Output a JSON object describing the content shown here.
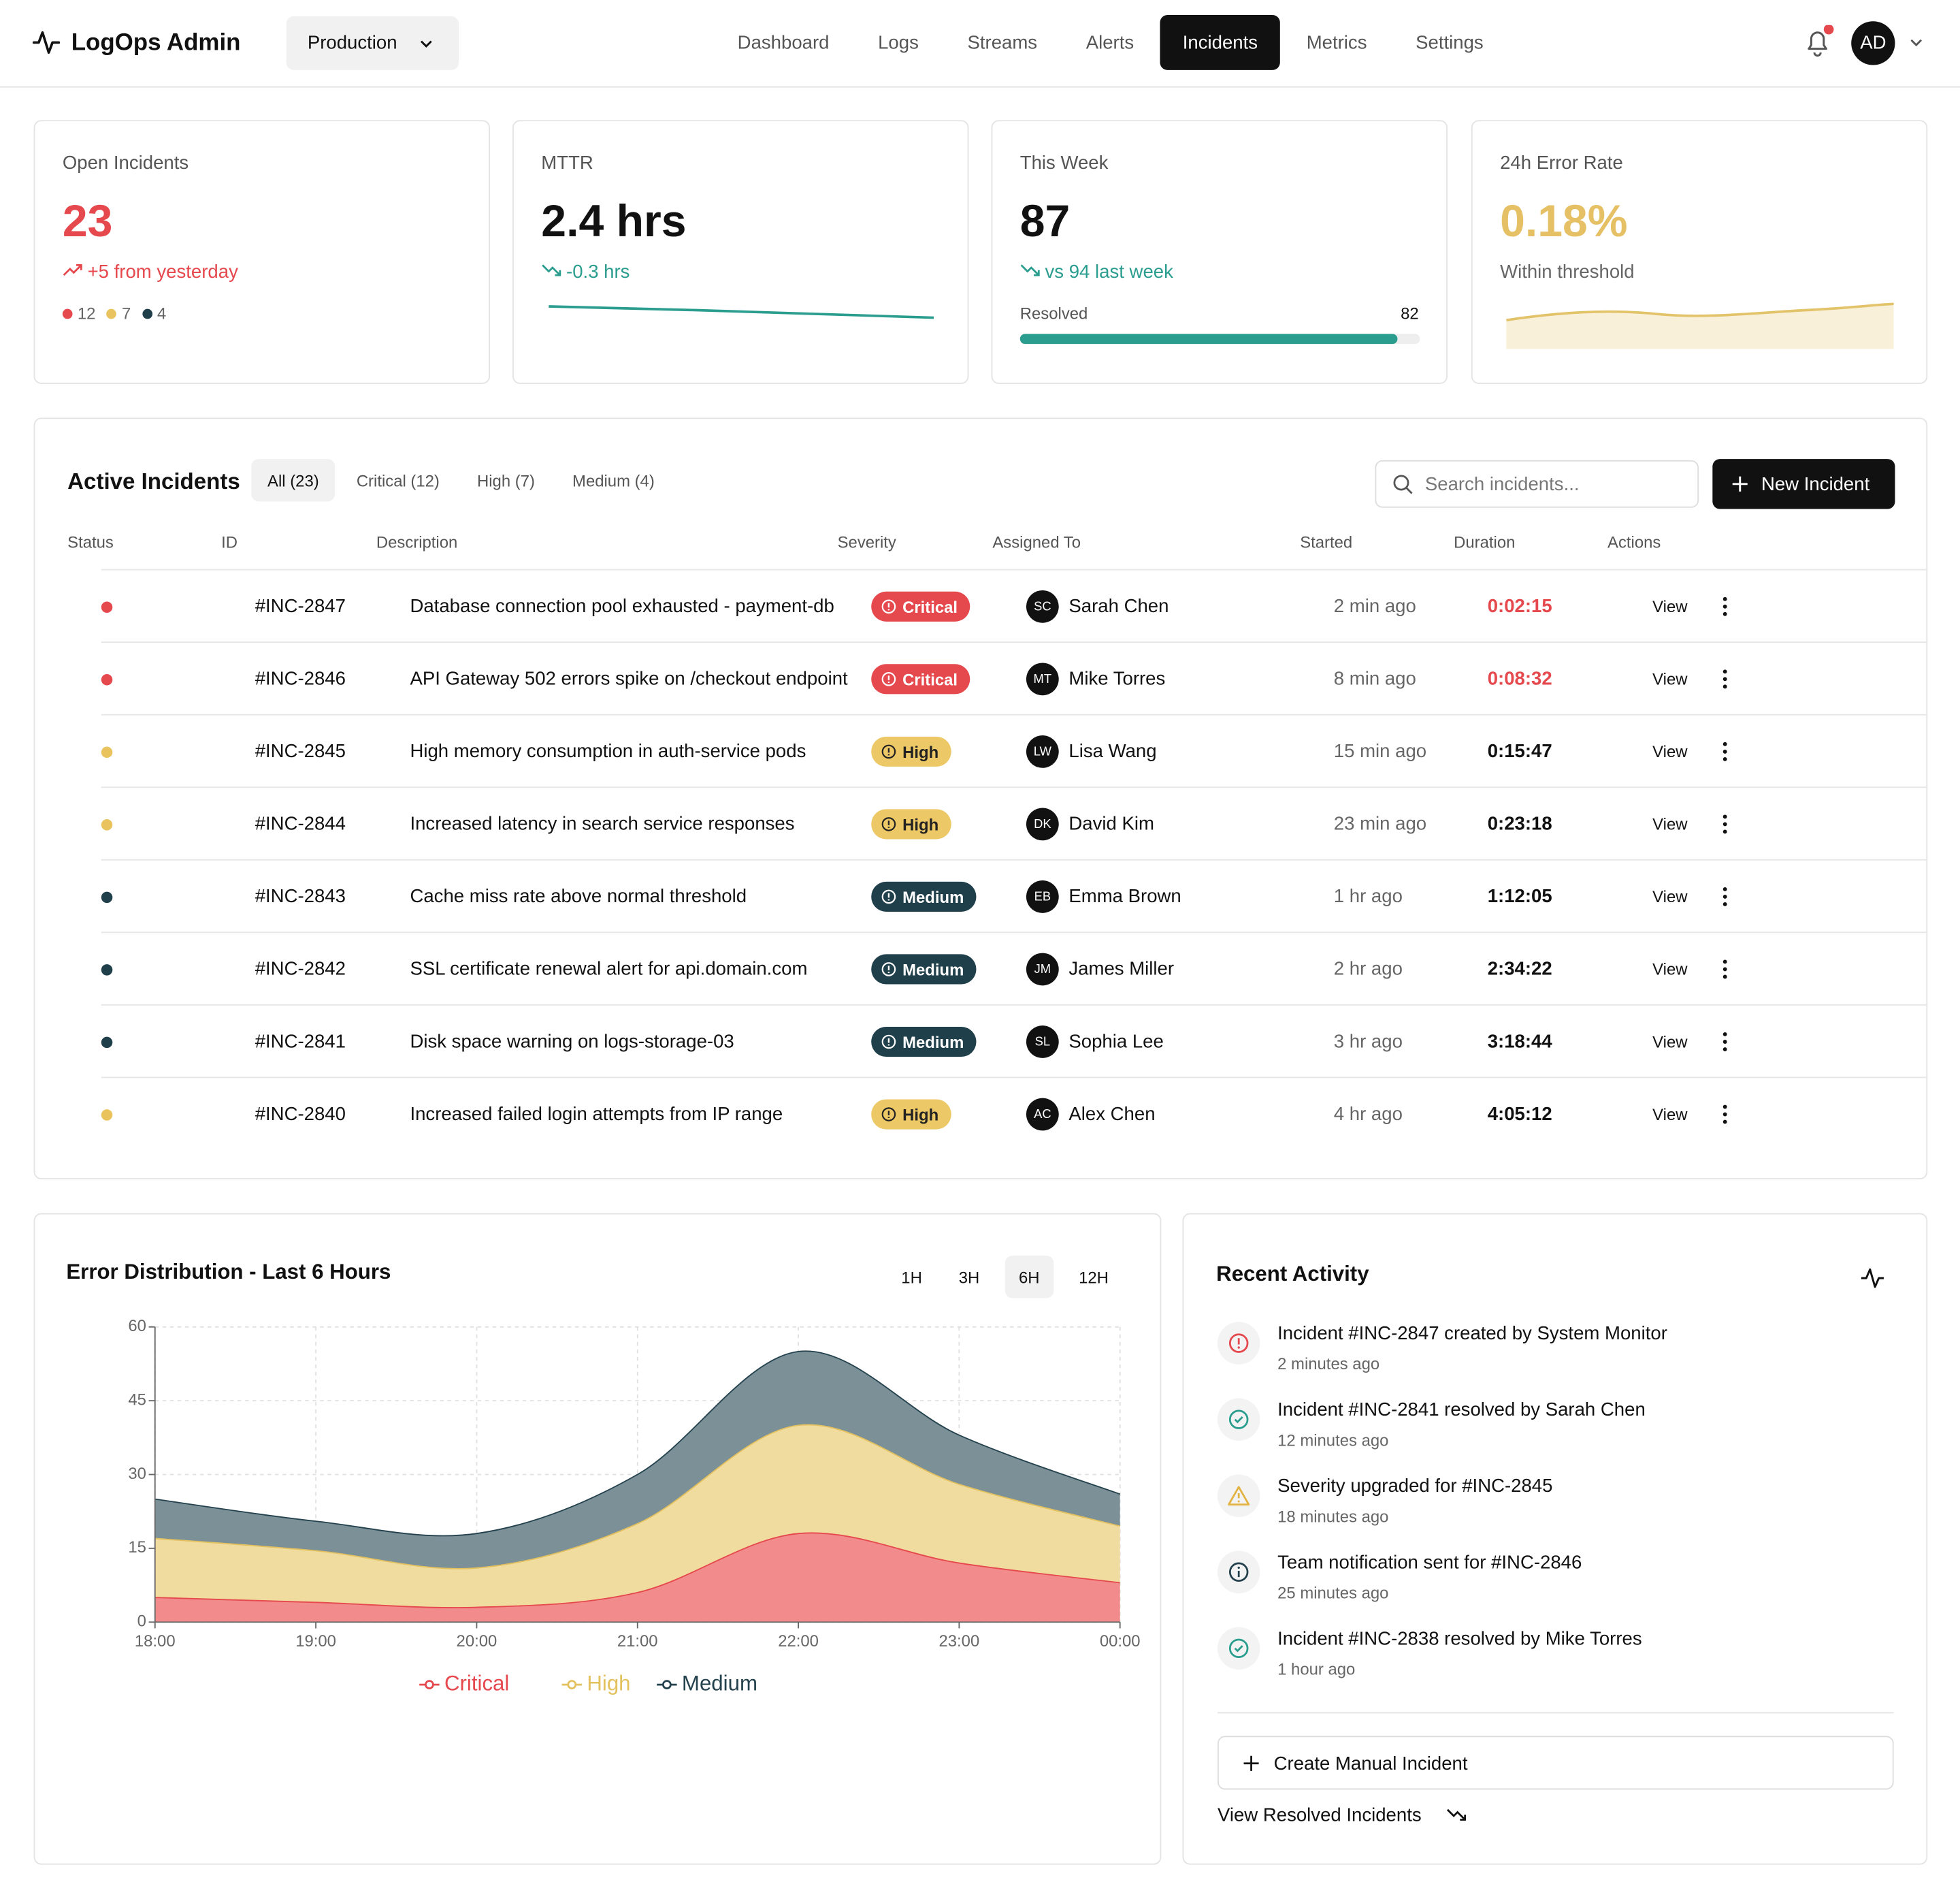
{
  "header": {
    "brand": "LogOps Admin",
    "environment": "Production",
    "nav": [
      "Dashboard",
      "Logs",
      "Streams",
      "Alerts",
      "Incidents",
      "Metrics",
      "Settings"
    ],
    "active_nav": 4,
    "user_initials": "AD"
  },
  "kpis": [
    {
      "label": "Open Incidents",
      "value": "23",
      "change": "+5 from yesterday",
      "breakdown": [
        12,
        7,
        4
      ]
    },
    {
      "label": "MTTR",
      "value": "2.4 hrs",
      "change": "-0.3 hrs"
    },
    {
      "label": "This Week",
      "value": 87,
      "change": "vs 94 last week",
      "resolved_label": "Resolved",
      "resolved_value": 82
    },
    {
      "label": "24h Error Rate",
      "value": "0.18%",
      "change": "Within threshold"
    }
  ],
  "incidents": {
    "title": "Active Incidents",
    "tabs": [
      "All (23)",
      "Critical (12)",
      "High (7)",
      "Medium (4)"
    ],
    "active_tab": 0,
    "search_placeholder": "Search incidents...",
    "new_button": "New Incident",
    "columns": [
      "Status",
      "ID",
      "Description",
      "Severity",
      "Assigned To",
      "Started",
      "Duration",
      "Actions"
    ],
    "action": "View",
    "rows": [
      {
        "id": "#INC-2847",
        "description": "Database connection pool exhausted - payment-db",
        "severity": "Critical",
        "initials": "SC",
        "assignee": "Sarah Chen",
        "started": "2 min ago",
        "duration": "0:02:15"
      },
      {
        "id": "#INC-2846",
        "description": "API Gateway 502 errors spike on /checkout endpoint",
        "severity": "Critical",
        "initials": "MT",
        "assignee": "Mike Torres",
        "started": "8 min ago",
        "duration": "0:08:32"
      },
      {
        "id": "#INC-2845",
        "description": "High memory consumption in auth-service pods",
        "severity": "High",
        "initials": "LW",
        "assignee": "Lisa Wang",
        "started": "15 min ago",
        "duration": "0:15:47"
      },
      {
        "id": "#INC-2844",
        "description": "Increased latency in search service responses",
        "severity": "High",
        "initials": "DK",
        "assignee": "David Kim",
        "started": "23 min ago",
        "duration": "0:23:18"
      },
      {
        "id": "#INC-2843",
        "description": "Cache miss rate above normal threshold",
        "severity": "Medium",
        "initials": "EB",
        "assignee": "Emma Brown",
        "started": "1 hr ago",
        "duration": "1:12:05"
      },
      {
        "id": "#INC-2842",
        "description": "SSL certificate renewal alert for api.domain.com",
        "severity": "Medium",
        "initials": "JM",
        "assignee": "James Miller",
        "started": "2 hr ago",
        "duration": "2:34:22"
      },
      {
        "id": "#INC-2841",
        "description": "Disk space warning on logs-storage-03",
        "severity": "Medium",
        "initials": "SL",
        "assignee": "Sophia Lee",
        "started": "3 hr ago",
        "duration": "3:18:44"
      },
      {
        "id": "#INC-2840",
        "description": "Increased failed login attempts from IP range",
        "severity": "High",
        "initials": "AC",
        "assignee": "Alex Chen",
        "started": "4 hr ago",
        "duration": "4:05:12"
      }
    ]
  },
  "error_chart": {
    "type": "area",
    "stacked": true,
    "grid": true,
    "title": "Error Distribution - Last 6 Hours",
    "ranges": [
      "1H",
      "3H",
      "6H",
      "12H"
    ],
    "active_range": 2,
    "x": [
      "18:00",
      "19:00",
      "20:00",
      "21:00",
      "22:00",
      "23:00",
      "00:00"
    ],
    "ylim": [
      0,
      60
    ],
    "yticks": [
      0,
      15,
      30,
      45,
      60
    ],
    "series": [
      {
        "name": "Critical",
        "color": "#e5484d",
        "fill": "#f28b8b",
        "values": [
          5,
          4,
          3,
          6,
          18,
          12,
          8
        ]
      },
      {
        "name": "High",
        "color": "#e3c15f",
        "fill": "#f1dc9f",
        "values": [
          12,
          10.5,
          8,
          14,
          22,
          16,
          11.5
        ]
      },
      {
        "name": "Medium",
        "color": "#24424d",
        "fill": "#7c9098",
        "values": [
          8,
          6,
          7,
          10,
          15,
          10,
          6.5
        ]
      }
    ]
  },
  "activity": {
    "title": "Recent Activity",
    "items": [
      {
        "text": "Incident #INC-2847 created by System Monitor",
        "time": "2 minutes ago"
      },
      {
        "text": "Incident #INC-2841 resolved by Sarah Chen",
        "time": "12 minutes ago"
      },
      {
        "text": "Severity upgraded for #INC-2845",
        "time": "18 minutes ago"
      },
      {
        "text": "Team notification sent for #INC-2846",
        "time": "25 minutes ago"
      },
      {
        "text": "Incident #INC-2838 resolved by Mike Torres",
        "time": "1 hour ago"
      }
    ],
    "create_button": "Create Manual Incident",
    "resolved_link": "View Resolved Incidents"
  }
}
